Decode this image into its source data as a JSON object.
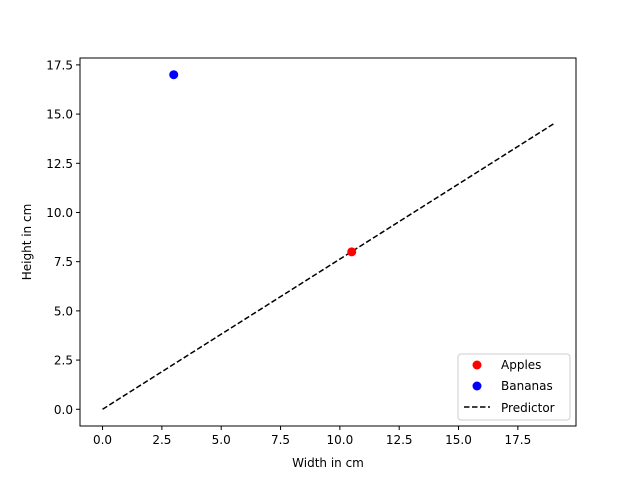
{
  "chart_data": {
    "type": "scatter",
    "title": "",
    "xlabel": "Width in cm",
    "ylabel": "Height in cm",
    "xlim": [
      -0.95,
      19.95
    ],
    "ylim": [
      -0.85,
      17.85
    ],
    "xticks": [
      "0.0",
      "2.5",
      "5.0",
      "7.5",
      "10.0",
      "12.5",
      "15.0",
      "17.5"
    ],
    "yticks": [
      "0.0",
      "2.5",
      "5.0",
      "7.5",
      "10.0",
      "12.5",
      "15.0",
      "17.5"
    ],
    "grid": false,
    "legend_position": "lower-right",
    "series": [
      {
        "name": "Apples",
        "kind": "points",
        "color": "#ff0000",
        "x": [
          10.5
        ],
        "y": [
          8.0
        ]
      },
      {
        "name": "Bananas",
        "kind": "points",
        "color": "#0000ff",
        "x": [
          3.0
        ],
        "y": [
          17.0
        ]
      },
      {
        "name": "Predictor",
        "kind": "dashed-line",
        "color": "#000000",
        "x": [
          0,
          19
        ],
        "y": [
          0,
          14.5
        ]
      }
    ]
  }
}
